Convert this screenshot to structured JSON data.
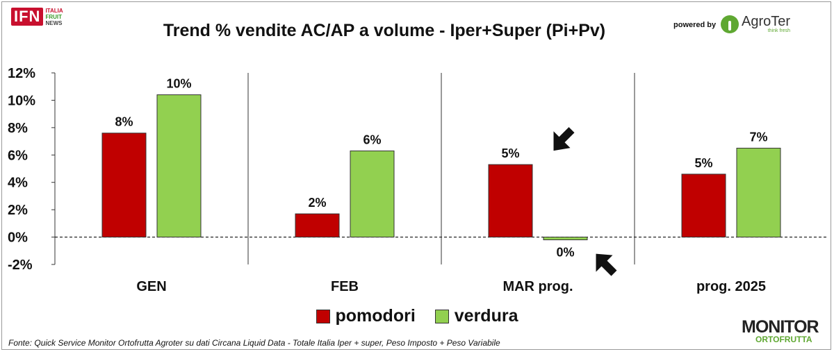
{
  "header": {
    "logo_box": "IFN",
    "logo_line1": "ITALIA",
    "logo_line2": "FRUIT",
    "logo_line3": "NEWS",
    "powered_by": "powered by",
    "sponsor_name": "AgroTer",
    "sponsor_tagline": "think fresh"
  },
  "chart_data": {
    "type": "bar",
    "title": "Trend % vendite AC/AP a volume -  Iper+Super (Pi+Pv)",
    "categories": [
      "GEN",
      "FEB",
      "MAR prog.",
      "prog. 2025"
    ],
    "series": [
      {
        "name": "pomodori",
        "color": "#c00000",
        "values": [
          7.6,
          1.7,
          5.3,
          4.6
        ],
        "labels": [
          "8%",
          "2%",
          "5%",
          "5%"
        ]
      },
      {
        "name": "verdura",
        "color": "#92d050",
        "values": [
          10.4,
          6.3,
          -0.2,
          6.5
        ],
        "labels": [
          "10%",
          "6%",
          "0%",
          "7%"
        ]
      }
    ],
    "ylim": [
      -2,
      12
    ],
    "yticks": [
      12,
      10,
      8,
      6,
      4,
      2,
      0,
      -2
    ],
    "ytick_labels": [
      "12%",
      "10%",
      "8%",
      "6%",
      "4%",
      "2%",
      "0%",
      "-2%"
    ],
    "zero_line": "dashed",
    "gridlines": false,
    "category_separators": true,
    "legend_position": "bottom",
    "annotations": [
      "arrow pointing to MAR prog. pomodori bar",
      "arrow pointing to MAR prog. verdura bar"
    ]
  },
  "footer": {
    "source": "Fonte: Quick Service Monitor Ortofrutta Agroter su dati Circana Liquid Data - Totale Italia Iper + super, Peso Imposto + Peso Variabile",
    "brand_top": "MONITOR",
    "brand_bottom": "ORTOFRUTTA"
  }
}
